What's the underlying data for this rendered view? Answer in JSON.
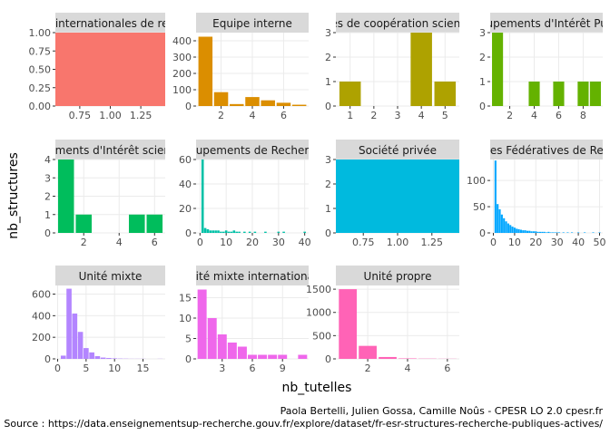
{
  "figure": {
    "xlabel": "nb_tutelles",
    "ylabel": "nb_structures",
    "credit": "Paola Bertelli, Julien Gossa, Camille Noûs - CPESR LO 2.0 cpesr.fr",
    "source": "Source : https://data.enseignementsup-recherche.gouv.fr/explore/dataset/fr-esr-structures-recherche-publiques-actives/"
  },
  "chart_data": [
    {
      "type": "bar",
      "title": "Équipes internationales de recherche",
      "color": "#F8766D",
      "x": [
        1
      ],
      "values": [
        1
      ],
      "xlim": [
        0.55,
        1.45
      ],
      "ylim": [
        0,
        1.0
      ],
      "xticks": [
        0.75,
        1.0,
        1.25
      ],
      "xtick_labels": [
        "0.75",
        "1.00",
        "1.25"
      ],
      "yticks": [
        0,
        0.25,
        0.5,
        0.75,
        1.0
      ],
      "ytick_labels": [
        "0.00",
        "0.25",
        "0.50",
        "0.75",
        "1.00"
      ]
    },
    {
      "type": "bar",
      "title": "Equipe interne",
      "color": "#DB8E00",
      "x": [
        1,
        2,
        3,
        4,
        5,
        6,
        7
      ],
      "values": [
        425,
        85,
        12,
        55,
        35,
        20,
        8
      ],
      "xlim": [
        0.4,
        7.6
      ],
      "ylim": [
        0,
        450
      ],
      "xticks": [
        2,
        4,
        6
      ],
      "xtick_labels": [
        "2",
        "4",
        "6"
      ],
      "yticks": [
        0,
        100,
        200,
        300,
        400
      ],
      "ytick_labels": [
        "0",
        "100",
        "200",
        "300",
        "400"
      ]
    },
    {
      "type": "bar",
      "title": "Équipes de coopération scientifique",
      "color": "#AEA200",
      "x": [
        1,
        2,
        3,
        4,
        5
      ],
      "values": [
        1,
        0,
        0,
        3,
        1
      ],
      "xlim": [
        0.4,
        5.6
      ],
      "ylim": [
        0,
        3
      ],
      "xticks": [
        1,
        2,
        3,
        4,
        5
      ],
      "xtick_labels": [
        "1",
        "2",
        "3",
        "4",
        "5"
      ],
      "yticks": [
        0,
        1,
        2,
        3
      ],
      "ytick_labels": [
        "0",
        "1",
        "2",
        "3"
      ]
    },
    {
      "type": "bar",
      "title": "Groupements d'Intérêt Public",
      "color": "#64B200",
      "x": [
        1,
        2,
        3,
        4,
        5,
        6,
        7,
        8,
        9
      ],
      "values": [
        3,
        0,
        0,
        1,
        0,
        1,
        0,
        1,
        1
      ],
      "xlim": [
        0.4,
        9.6
      ],
      "ylim": [
        0,
        3
      ],
      "xticks": [
        2,
        4,
        6,
        8
      ],
      "xtick_labels": [
        "2",
        "4",
        "6",
        "8"
      ],
      "yticks": [
        0,
        1,
        2,
        3
      ],
      "ytick_labels": [
        "0",
        "1",
        "2",
        "3"
      ]
    },
    {
      "type": "bar",
      "title": "Groupements d'Intérêt scientifique",
      "color": "#00BD5C",
      "x": [
        1,
        2,
        3,
        4,
        5,
        6
      ],
      "values": [
        4,
        1,
        0,
        0,
        1,
        1
      ],
      "xlim": [
        0.4,
        6.6
      ],
      "ylim": [
        0,
        4
      ],
      "xticks": [
        2,
        4,
        6
      ],
      "xtick_labels": [
        "2",
        "4",
        "6"
      ],
      "yticks": [
        0,
        1,
        2,
        3,
        4
      ],
      "ytick_labels": [
        "0",
        "1",
        "2",
        "3",
        "4"
      ]
    },
    {
      "type": "bar",
      "title": "Groupements de Recherche",
      "color": "#00C1A7",
      "x": [
        1,
        2,
        3,
        4,
        5,
        6,
        7,
        8,
        9,
        10,
        11,
        12,
        13,
        14,
        15,
        16,
        17,
        18,
        19,
        20,
        21,
        22,
        23,
        24,
        25,
        26,
        27,
        28,
        29,
        30,
        31,
        32,
        33,
        34,
        35,
        36,
        37,
        38,
        39,
        40
      ],
      "values": [
        60,
        4,
        3,
        2,
        2,
        2,
        2,
        1,
        1,
        2,
        1,
        1,
        2,
        1,
        1,
        0,
        1,
        0,
        1,
        0,
        1,
        0,
        0,
        0,
        1,
        0,
        0,
        0,
        0,
        1,
        0,
        1,
        0,
        0,
        0,
        0,
        0,
        0,
        0,
        1
      ],
      "xlim": [
        -1.5,
        41.5
      ],
      "ylim": [
        0,
        60
      ],
      "xticks": [
        0,
        10,
        20,
        30,
        40
      ],
      "xtick_labels": [
        "0",
        "10",
        "20",
        "30",
        "40"
      ],
      "yticks": [
        0,
        20,
        40,
        60
      ],
      "ytick_labels": [
        "0",
        "20",
        "40",
        "60"
      ]
    },
    {
      "type": "bar",
      "title": "Société privée",
      "color": "#00BADE",
      "x": [
        1
      ],
      "values": [
        3
      ],
      "xlim": [
        0.55,
        1.45
      ],
      "ylim": [
        0,
        3
      ],
      "xticks": [
        0.75,
        1.0,
        1.25
      ],
      "xtick_labels": [
        "0.75",
        "1.00",
        "1.25"
      ],
      "yticks": [
        0,
        1,
        2,
        3
      ],
      "ytick_labels": [
        "0",
        "1",
        "2",
        "3"
      ]
    },
    {
      "type": "bar",
      "title": "Structures Fédératives de Recherche",
      "color": "#00A6FF",
      "x": [
        1,
        2,
        3,
        4,
        5,
        6,
        7,
        8,
        9,
        10,
        11,
        12,
        13,
        14,
        15,
        16,
        17,
        18,
        19,
        20,
        21,
        22,
        23,
        24,
        25,
        26,
        27,
        28,
        29,
        30,
        31,
        32,
        33,
        34,
        35,
        36,
        37,
        38,
        39,
        40,
        41,
        42,
        43,
        44,
        45,
        46,
        47,
        48,
        49,
        50
      ],
      "values": [
        138,
        55,
        45,
        35,
        28,
        22,
        18,
        15,
        12,
        10,
        8,
        7,
        6,
        5,
        5,
        4,
        4,
        3,
        3,
        3,
        2,
        2,
        2,
        2,
        1,
        2,
        1,
        1,
        1,
        1,
        1,
        0,
        1,
        0,
        1,
        0,
        1,
        0,
        0,
        1,
        0,
        0,
        1,
        0,
        0,
        0,
        1,
        0,
        0,
        1
      ],
      "xlim": [
        -1.5,
        51.5
      ],
      "ylim": [
        0,
        140
      ],
      "xticks": [
        0,
        10,
        20,
        30,
        40,
        50
      ],
      "xtick_labels": [
        "0",
        "10",
        "20",
        "30",
        "40",
        "50"
      ],
      "yticks": [
        0,
        50,
        100
      ],
      "ytick_labels": [
        "0",
        "50",
        "100"
      ]
    },
    {
      "type": "bar",
      "title": "Unité mixte",
      "color": "#B385FF",
      "x": [
        1,
        2,
        3,
        4,
        5,
        6,
        7,
        8,
        9,
        10,
        11,
        12,
        13,
        14,
        15,
        16,
        17,
        18
      ],
      "values": [
        30,
        650,
        420,
        250,
        100,
        60,
        25,
        12,
        8,
        5,
        3,
        2,
        1,
        1,
        1,
        0,
        0,
        1
      ],
      "xlim": [
        -0.4,
        18.9
      ],
      "ylim": [
        0,
        680
      ],
      "xticks": [
        0,
        5,
        10,
        15
      ],
      "xtick_labels": [
        "0",
        "5",
        "10",
        "15"
      ],
      "yticks": [
        0,
        200,
        400,
        600
      ],
      "ytick_labels": [
        "0",
        "200",
        "400",
        "600"
      ]
    },
    {
      "type": "bar",
      "title": "Unité mixte internationale",
      "color": "#EF67EB",
      "x": [
        1,
        2,
        3,
        4,
        5,
        6,
        7,
        8,
        9,
        10,
        11
      ],
      "values": [
        17,
        10,
        6,
        4,
        3,
        1,
        1,
        1,
        1,
        0,
        1
      ],
      "xlim": [
        0.4,
        11.6
      ],
      "ylim": [
        0,
        18
      ],
      "xticks": [
        3,
        6,
        9
      ],
      "xtick_labels": [
        "3",
        "6",
        "9"
      ],
      "yticks": [
        0,
        5,
        10,
        15
      ],
      "ytick_labels": [
        "0",
        "5",
        "10",
        "15"
      ]
    },
    {
      "type": "bar",
      "title": "Unité propre",
      "color": "#FF63B6",
      "x": [
        1,
        2,
        3,
        4,
        5,
        6
      ],
      "values": [
        1500,
        280,
        40,
        10,
        5,
        3
      ],
      "xlim": [
        0.4,
        6.6
      ],
      "ylim": [
        0,
        1580
      ],
      "xticks": [
        2,
        4,
        6
      ],
      "xtick_labels": [
        "2",
        "4",
        "6"
      ],
      "yticks": [
        0,
        500,
        1000,
        1500
      ],
      "ytick_labels": [
        "0",
        "500",
        "1000",
        "1500"
      ]
    }
  ]
}
